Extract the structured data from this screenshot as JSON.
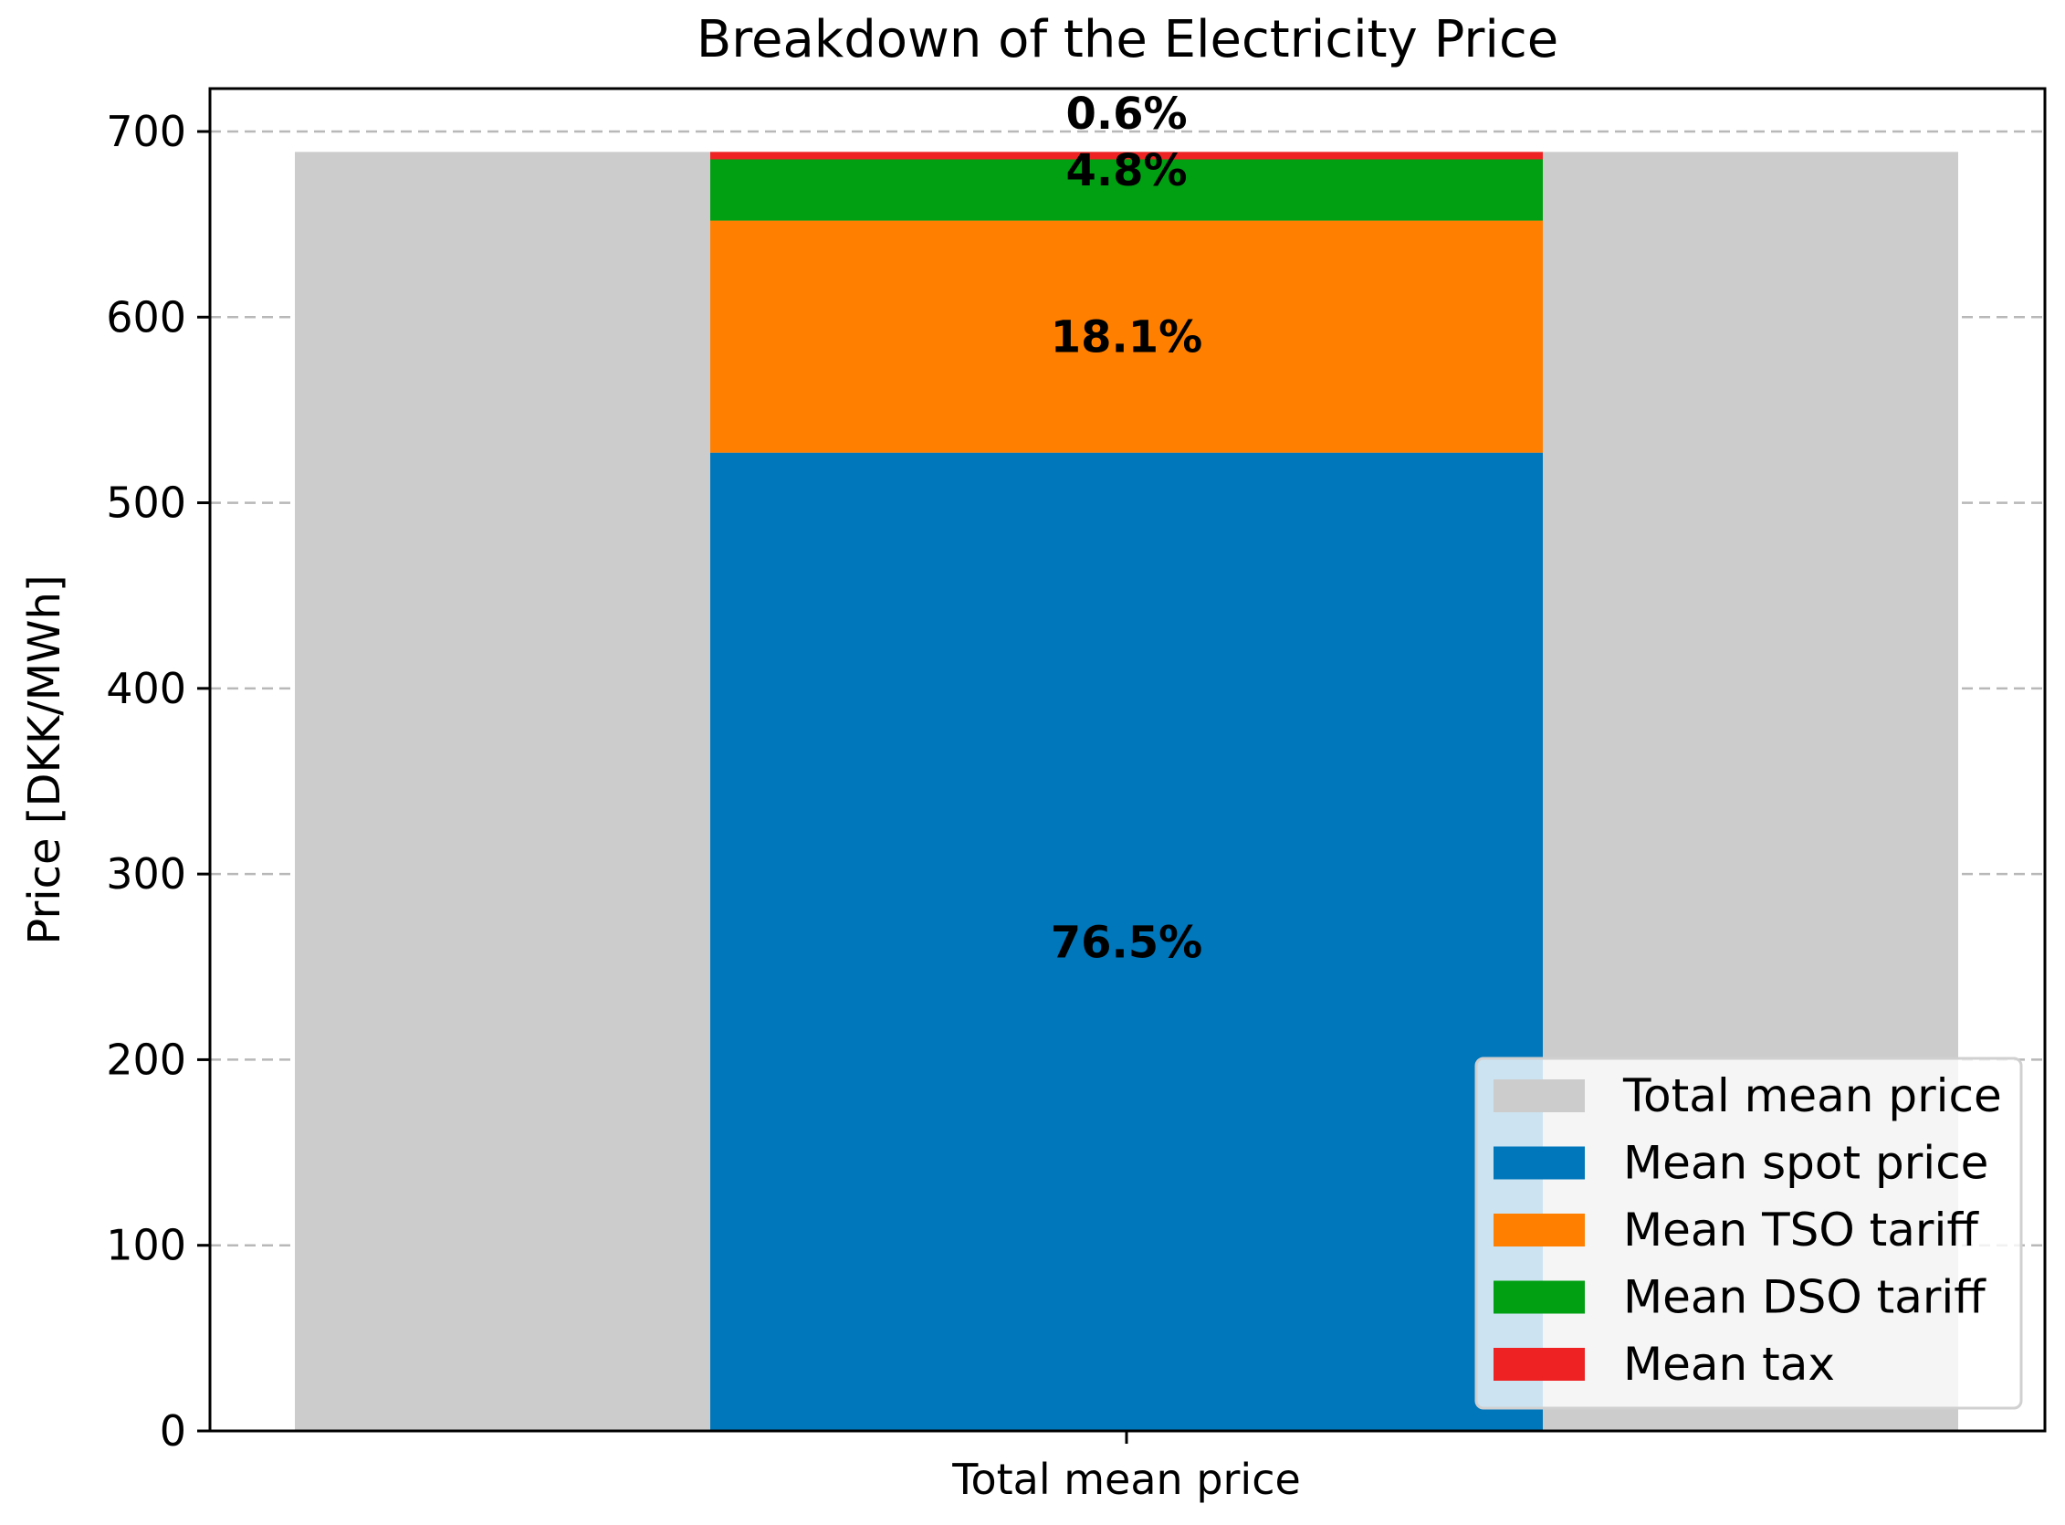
{
  "chart_data": {
    "type": "bar",
    "title": "Breakdown of the Electricity Price",
    "xlabel": "",
    "ylabel": "Price [DKK/MWh]",
    "ylim": [
      0,
      700
    ],
    "yticks": [
      0,
      100,
      200,
      300,
      400,
      500,
      600,
      700
    ],
    "categories": [
      "Total mean price"
    ],
    "grid": true,
    "legend_position": "lower-right",
    "background_bar": {
      "name": "Total mean price",
      "value": 689,
      "color": "#cccccc"
    },
    "series": [
      {
        "name": "Mean spot price",
        "values": [
          527
        ],
        "color": "#0077bb",
        "label": "76.5%"
      },
      {
        "name": "Mean TSO tariff",
        "values": [
          125
        ],
        "color": "#ff7f00",
        "label": "18.1%"
      },
      {
        "name": "Mean DSO tariff",
        "values": [
          33
        ],
        "color": "#00a012",
        "label": "4.8%"
      },
      {
        "name": "Mean tax",
        "values": [
          4
        ],
        "color": "#ee2222",
        "label": "0.6%"
      }
    ]
  }
}
